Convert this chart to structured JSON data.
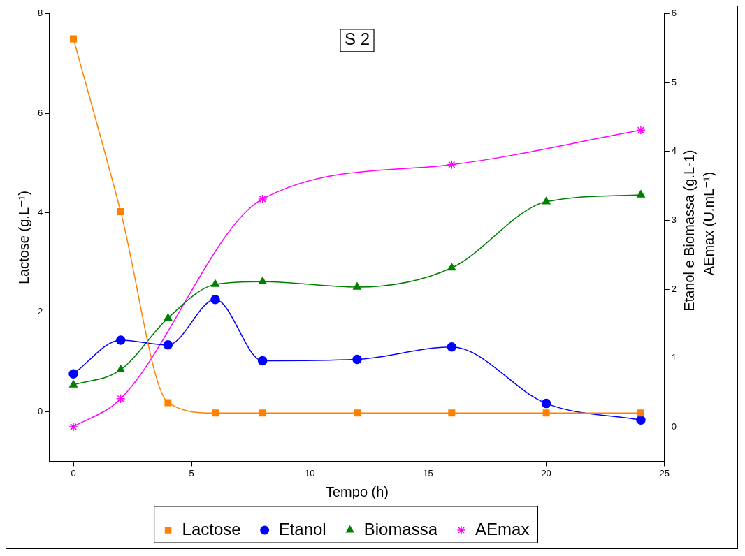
{
  "chart_data": {
    "type": "line",
    "title": "S 2",
    "xlabel": "Tempo (h)",
    "ylabel": "Lactose (g.L⁻¹)",
    "y2label": [
      "Etanol e Biomassa (g.L-1)",
      "AEmax (U.mL⁻¹)"
    ],
    "xlim": [
      -1,
      25
    ],
    "xticks": [
      0,
      5,
      10,
      15,
      20,
      25
    ],
    "ylim": [
      -1,
      8
    ],
    "yticks": [
      0,
      2,
      4,
      6,
      8
    ],
    "y2lim": [
      -0.5,
      6
    ],
    "y2ticks": [
      0,
      1,
      2,
      3,
      4,
      5,
      6
    ],
    "legend": "bottom",
    "grid": false,
    "series": [
      {
        "name": "Lactose",
        "color": "#ff8000",
        "marker": "square",
        "x": [
          0,
          2,
          4,
          6,
          8,
          12,
          16,
          20,
          24
        ],
        "values": [
          7.5,
          4.02,
          0.18,
          -0.03,
          -0.03,
          -0.03,
          -0.03,
          -0.03,
          -0.03
        ]
      },
      {
        "name": "Etanol",
        "color": "#0000ff",
        "marker": "circle",
        "axis": "y2",
        "x": [
          0,
          2,
          4,
          6,
          8,
          12,
          16,
          20,
          24
        ],
        "values": [
          0.77,
          1.26,
          1.19,
          1.85,
          0.96,
          0.98,
          1.16,
          0.34,
          0.1
        ]
      },
      {
        "name": "Biomassa",
        "color": "#008000",
        "marker": "triangle",
        "axis": "y2",
        "x": [
          0,
          2,
          4,
          6,
          8,
          12,
          16,
          20,
          24
        ],
        "values": [
          0.61,
          0.83,
          1.58,
          2.07,
          2.11,
          2.03,
          2.31,
          3.27,
          3.37
        ]
      },
      {
        "name": "AEmax",
        "color": "#ff00ff",
        "marker": "cross",
        "axis": "y2",
        "x": [
          0,
          2,
          8,
          16,
          24
        ],
        "values": [
          0,
          0.41,
          3.31,
          3.81,
          4.31
        ]
      }
    ]
  }
}
